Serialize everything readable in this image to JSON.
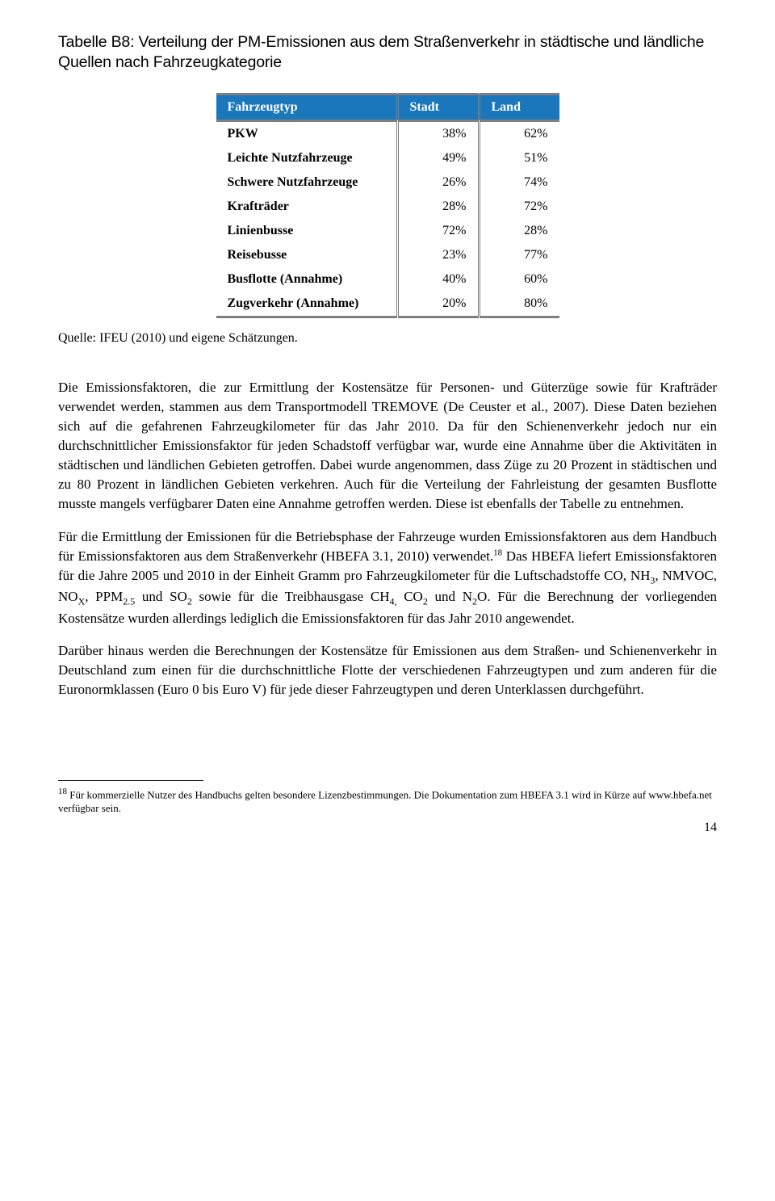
{
  "caption": "Tabelle B8: Verteilung der PM-Emissionen aus dem Straßenverkehr in städtische und ländliche Quellen nach Fahrzeugkategorie",
  "table": {
    "type": "table",
    "header_bg": "#1b77bb",
    "header_fg": "#ffffff",
    "border_color": "#7f7f7f",
    "columns": [
      "Fahrzeugtyp",
      "Stadt",
      "Land"
    ],
    "rows": [
      [
        "PKW",
        "38%",
        "62%"
      ],
      [
        "Leichte Nutzfahrzeuge",
        "49%",
        "51%"
      ],
      [
        "Schwere Nutzfahrzeuge",
        "26%",
        "74%"
      ],
      [
        "Krafträder",
        "28%",
        "72%"
      ],
      [
        "Linienbusse",
        "72%",
        "28%"
      ],
      [
        "Reisebusse",
        "23%",
        "77%"
      ],
      [
        "Busflotte (Annahme)",
        "40%",
        "60%"
      ],
      [
        "Zugverkehr (Annahme)",
        "20%",
        "80%"
      ]
    ]
  },
  "source": "Quelle: IFEU (2010) und eigene Schätzungen.",
  "para1_a": "Die Emissionsfaktoren, die zur Ermittlung der Kostensätze für Personen- und Güterzüge sowie für Krafträder verwendet werden, stammen aus dem Transportmodell TREMOVE (De Ceuster et al., 2007). Diese Daten beziehen sich auf die gefahrenen Fahrzeugkilometer für das Jahr 2010. Da für den Schienenverkehr jedoch nur ein durchschnittlicher Emissionsfaktor für jeden Schadstoff verfügbar war, wurde eine Annahme über die Aktivitäten in städtischen und ländlichen Gebieten getroffen. Dabei wurde angenommen, dass Züge zu 20 Prozent in städtischen und zu 80 Prozent in ländlichen Gebieten verkehren. Auch für die Verteilung der Fahrleistung der gesamten Busflotte musste mangels verfügbarer Daten eine Annahme getroffen werden. Diese ist ebenfalls der Tabelle zu entnehmen.",
  "para2_a": "Für die Ermittlung der Emissionen für die Betriebsphase der Fahrzeuge wurden Emissionsfaktoren aus dem Handbuch für Emissionsfaktoren aus dem Straßenverkehr (HBEFA 3.1, 2010) verwendet.",
  "ref18": "18",
  "para2_b": " Das HBEFA liefert Emissionsfaktoren für die Jahre 2005 und 2010 in der Einheit Gramm pro Fahrzeugkilometer für die Luftschadstoffe CO, NH",
  "sub3": "3",
  "para2_c": ", NMVOC, NO",
  "subX": "X",
  "para2_d": ", PPM",
  "sub25": "2.5",
  "para2_e": " und SO",
  "sub2a": "2",
  "para2_f": " sowie für die Treibhausgase CH",
  "sub4": "4,",
  "para2_g": " CO",
  "sub2b": "2",
  "para2_h": " und N",
  "sub2c": "2",
  "para2_i": "O. Für die Berechnung der vorliegenden Kostensätze wurden allerdings lediglich die Emissionsfaktoren für das Jahr 2010 angewendet.",
  "para3": "Darüber hinaus werden die Berechnungen der Kostensätze für Emissionen aus dem Straßen- und Schienenverkehr in Deutschland zum einen für die durchschnittliche Flotte der verschiedenen Fahrzeugtypen und zum anderen für die Euronormklassen (Euro 0 bis Euro V) für jede dieser Fahrzeugtypen und deren Unterklassen durchgeführt.",
  "footnote_num": "18",
  "footnote_text": " Für kommerzielle Nutzer des Handbuchs gelten besondere Lizenzbestimmungen. Die Dokumentation zum HBEFA 3.1 wird in Kürze auf www.hbefa.net verfügbar sein.",
  "page_number": "14"
}
